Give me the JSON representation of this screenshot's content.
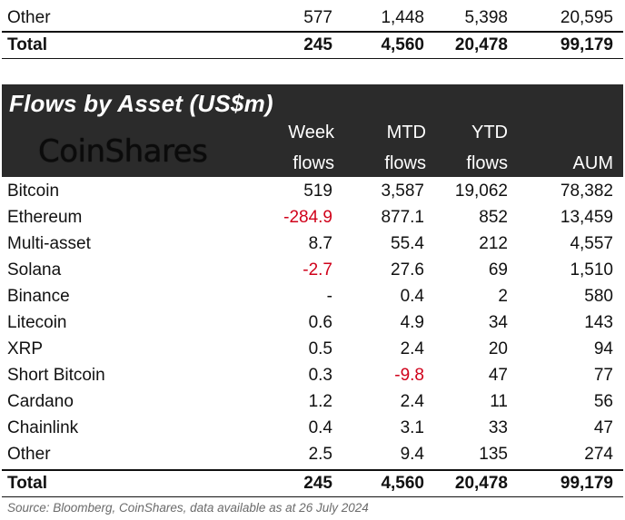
{
  "top_rows": [
    {
      "asset": "Other",
      "week": "577",
      "mtd": "1,448",
      "ytd": "5,398",
      "aum": "20,595"
    },
    {
      "asset": "Total",
      "week": "245",
      "mtd": "4,560",
      "ytd": "20,478",
      "aum": "99,179"
    }
  ],
  "header": {
    "title": "Flows by Asset (US$m)",
    "logo_text": "CoinShares",
    "col_week_1": "Week",
    "col_week_2": "flows",
    "col_mtd_1": "MTD",
    "col_mtd_2": "flows",
    "col_ytd_1": "YTD",
    "col_ytd_2": "flows",
    "col_aum": "AUM"
  },
  "rows": [
    {
      "asset": "Bitcoin",
      "week": "519",
      "mtd": "3,587",
      "ytd": "19,062",
      "aum": "78,382"
    },
    {
      "asset": "Ethereum",
      "week": "-284.9",
      "mtd": "877.1",
      "ytd": "852",
      "aum": "13,459"
    },
    {
      "asset": "Multi-asset",
      "week": "8.7",
      "mtd": "55.4",
      "ytd": "212",
      "aum": "4,557"
    },
    {
      "asset": "Solana",
      "week": "-2.7",
      "mtd": "27.6",
      "ytd": "69",
      "aum": "1,510"
    },
    {
      "asset": "Binance",
      "week": "-",
      "mtd": "0.4",
      "ytd": "2",
      "aum": "580"
    },
    {
      "asset": "Litecoin",
      "week": "0.6",
      "mtd": "4.9",
      "ytd": "34",
      "aum": "143"
    },
    {
      "asset": "XRP",
      "week": "0.5",
      "mtd": "2.4",
      "ytd": "20",
      "aum": "94"
    },
    {
      "asset": "Short Bitcoin",
      "week": "0.3",
      "mtd": "-9.8",
      "ytd": "47",
      "aum": "77"
    },
    {
      "asset": "Cardano",
      "week": "1.2",
      "mtd": "2.4",
      "ytd": "11",
      "aum": "56"
    },
    {
      "asset": "Chainlink",
      "week": "0.4",
      "mtd": "3.1",
      "ytd": "33",
      "aum": "47"
    },
    {
      "asset": "Other",
      "week": "2.5",
      "mtd": "9.4",
      "ytd": "135",
      "aum": "274"
    }
  ],
  "total": {
    "asset": "Total",
    "week": "245",
    "mtd": "4,560",
    "ytd": "20,478",
    "aum": "99,179"
  },
  "source": "Source: Bloomberg, CoinShares, data available as at 26 July 2024",
  "colors": {
    "negative": "#d0021b",
    "header_bg": "#2b2b2b"
  }
}
